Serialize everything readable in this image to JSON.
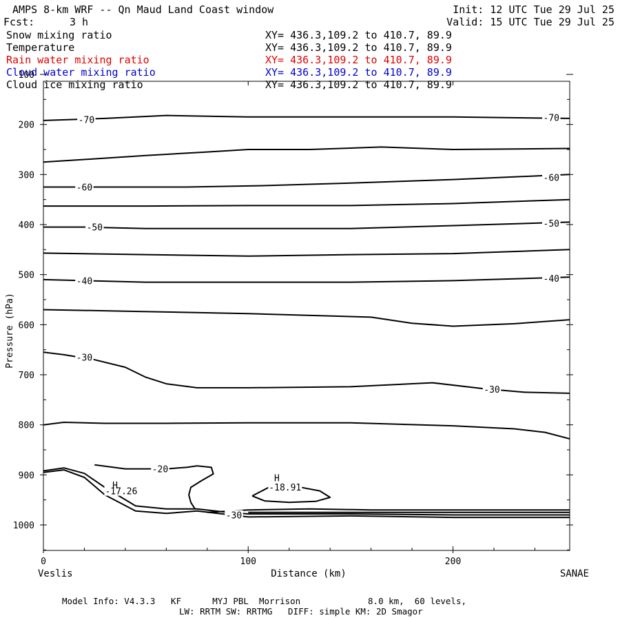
{
  "header": {
    "title": "AMPS 8-km WRF -- Qn Maud Land Coast window",
    "init": "Init: 12 UTC Tue 29 Jul 25",
    "fcst_label": "Fcst:",
    "fcst_value": "3 h",
    "valid": "Valid: 15 UTC Tue 29 Jul 25"
  },
  "fields": [
    {
      "name": "Snow mixing ratio",
      "xy": "XY= 436.3,109.2 to 410.7, 89.9",
      "color": "#000000"
    },
    {
      "name": "Temperature",
      "xy": "XY= 436.3,109.2 to 410.7, 89.9",
      "color": "#000000"
    },
    {
      "name": "Rain water mixing ratio",
      "xy": "XY= 436.3,109.2 to 410.7, 89.9",
      "color": "#e00000"
    },
    {
      "name": "Cloud water mixing ratio",
      "xy": "XY= 436.3,109.2 to 410.7, 89.9",
      "color": "#0000cc"
    },
    {
      "name": "Cloud ice mixing ratio",
      "xy": "XY= 436.3,109.2 to 410.7, 89.9",
      "color": "#000000"
    }
  ],
  "footer": {
    "line1": "Model Info: V4.3.3   KF      MYJ PBL  Morrison             8.0 km,  60 levels,",
    "line2": "LW: RRTM SW: RRTMG   DIFF: simple KM: 2D Smagor"
  },
  "chart_data": {
    "type": "line",
    "xlabel": "Distance (km)",
    "ylabel": "Pressure (hPa)",
    "xlim": [
      0,
      257
    ],
    "ylim": [
      1050,
      100
    ],
    "y_inverted": true,
    "x_ticks": [
      "0",
      "100",
      "200"
    ],
    "x_tick_values": [
      0,
      100,
      200
    ],
    "y_ticks": [
      "100",
      "200",
      "300",
      "400",
      "500",
      "600",
      "700",
      "800",
      "900",
      "1000"
    ],
    "y_tick_values": [
      100,
      200,
      300,
      400,
      500,
      600,
      700,
      800,
      900,
      1000
    ],
    "endpoint_labels": [
      "Veslis",
      "SANAE"
    ],
    "contours": [
      {
        "level": -75,
        "x": [
          0,
          257
        ],
        "p": [
          100,
          100
        ]
      },
      {
        "level": -70,
        "x": [
          0,
          30,
          60,
          100,
          150,
          200,
          257
        ],
        "p": [
          192,
          188,
          182,
          185,
          185,
          185,
          188
        ]
      },
      {
        "level": -65,
        "x": [
          0,
          20,
          50,
          80,
          100,
          130,
          165,
          200,
          257
        ],
        "p": [
          275,
          270,
          262,
          255,
          250,
          250,
          245,
          250,
          248
        ]
      },
      {
        "level": -60,
        "x": [
          0,
          30,
          70,
          110,
          150,
          200,
          257
        ],
        "p": [
          325,
          325,
          325,
          322,
          317,
          310,
          300
        ]
      },
      {
        "level": -55,
        "x": [
          0,
          50,
          100,
          150,
          200,
          257
        ],
        "p": [
          363,
          363,
          362,
          362,
          358,
          350
        ]
      },
      {
        "level": -50,
        "x": [
          0,
          20,
          50,
          100,
          150,
          200,
          257
        ],
        "p": [
          405,
          405,
          408,
          408,
          408,
          402,
          395
        ]
      },
      {
        "level": -45,
        "x": [
          0,
          50,
          100,
          150,
          200,
          257
        ],
        "p": [
          457,
          460,
          463,
          460,
          458,
          450
        ]
      },
      {
        "level": -40,
        "x": [
          0,
          20,
          50,
          100,
          150,
          200,
          257
        ],
        "p": [
          510,
          512,
          515,
          515,
          515,
          512,
          505
        ]
      },
      {
        "level": -35,
        "x": [
          0,
          40,
          100,
          160,
          180,
          200,
          230,
          257
        ],
        "p": [
          570,
          573,
          578,
          585,
          597,
          603,
          598,
          590
        ]
      },
      {
        "level": -30,
        "x": [
          0,
          10,
          25,
          40,
          50,
          60,
          75,
          100,
          150,
          190,
          215,
          235,
          257
        ],
        "p": [
          655,
          660,
          670,
          685,
          705,
          718,
          726,
          726,
          724,
          716,
          728,
          735,
          737
        ]
      },
      {
        "level": -25,
        "x": [
          0,
          10,
          30,
          60,
          100,
          150,
          200,
          230,
          245,
          257
        ],
        "p": [
          800,
          795,
          797,
          797,
          796,
          796,
          802,
          808,
          815,
          828
        ]
      },
      {
        "level": -20,
        "x": [
          25,
          40,
          60,
          70,
          75,
          82,
          83,
          77,
          72,
          71,
          72,
          74
        ],
        "p": [
          880,
          888,
          888,
          885,
          882,
          885,
          898,
          912,
          925,
          940,
          955,
          968
        ]
      },
      {
        "level": -18,
        "x": [
          102,
          110,
          122,
          135,
          140,
          133,
          120,
          108,
          102
        ],
        "p": [
          942,
          925,
          922,
          932,
          945,
          953,
          955,
          952,
          942
        ]
      },
      {
        "level": -30,
        "x": [
          0,
          10,
          20,
          30,
          45,
          60,
          75,
          100,
          150,
          200,
          257
        ],
        "p": [
          895,
          890,
          905,
          940,
          972,
          977,
          972,
          984,
          982,
          985,
          985
        ]
      },
      {
        "level": -25,
        "x": [
          0,
          10,
          20,
          30,
          45,
          60,
          75,
          90,
          100,
          150,
          200,
          257
        ],
        "p": [
          892,
          886,
          897,
          925,
          962,
          968,
          968,
          975,
          978,
          978,
          980,
          980
        ]
      },
      {
        "level": -28,
        "x": [
          80,
          100,
          130,
          160,
          200,
          257
        ],
        "p": [
          975,
          970,
          968,
          970,
          970,
          970
        ]
      },
      {
        "level": -29,
        "x": [
          100,
          150,
          200,
          257
        ],
        "p": [
          975,
          975,
          975,
          975
        ]
      }
    ],
    "contour_labels": [
      {
        "text": "-70",
        "x": 21,
        "p": 190
      },
      {
        "text": "-70",
        "x": 248,
        "p": 186
      },
      {
        "text": "-60",
        "x": 20,
        "p": 325
      },
      {
        "text": "-60",
        "x": 248,
        "p": 306
      },
      {
        "text": "-50",
        "x": 25,
        "p": 405
      },
      {
        "text": "-50",
        "x": 248,
        "p": 397
      },
      {
        "text": "-40",
        "x": 20,
        "p": 512
      },
      {
        "text": "-40",
        "x": 248,
        "p": 507
      },
      {
        "text": "-30",
        "x": 20,
        "p": 665
      },
      {
        "text": "-30",
        "x": 219,
        "p": 729
      },
      {
        "text": "-20",
        "x": 57,
        "p": 888
      },
      {
        "text": "-30",
        "x": 93,
        "p": 980
      },
      {
        "text": "-17.26",
        "x": 38,
        "p": 932
      },
      {
        "text": "-18.91",
        "x": 118,
        "p": 924
      }
    ],
    "extrema": [
      {
        "text": "H",
        "x": 35,
        "p": 920
      },
      {
        "text": "H",
        "x": 114,
        "p": 906
      }
    ]
  }
}
